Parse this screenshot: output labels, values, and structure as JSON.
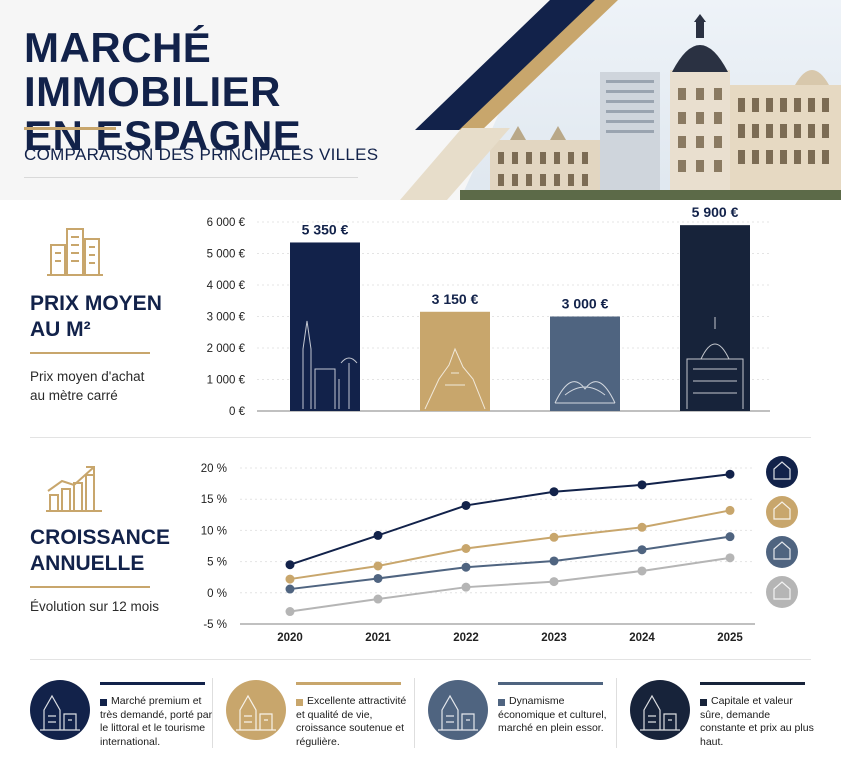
{
  "header": {
    "title_line1": "MARCHÉ IMMOBILIER",
    "title_line2": "EN ESPAGNE",
    "subtitle": "COMPARAISON DES PRINCIPALES VILLES"
  },
  "colors": {
    "navy": "#12224a",
    "gold": "#c8a66c",
    "steel": "#4f6480",
    "dark": "#17233a",
    "grey": "#b5b5b5"
  },
  "price_section": {
    "title_line1": "PRIX MOYEN",
    "title_line2": "AU M²",
    "description_line1": "Prix moyen d'achat",
    "description_line2": "au mètre carré",
    "icon": "buildings-icon"
  },
  "growth_section": {
    "title_line1": "CROISSANCE",
    "title_line2": "ANNUELLE",
    "description": "Évolution sur 12 mois",
    "icon": "growth-chart-icon"
  },
  "chart_data": [
    {
      "type": "bar",
      "categories": [
        "",
        "",
        "",
        ""
      ],
      "values": [
        5350,
        3150,
        3000,
        5900
      ],
      "data_labels": [
        "5 350 €",
        "3 150 €",
        "3 000 €",
        "5 900 €"
      ],
      "colors": [
        "#12224a",
        "#c8a66c",
        "#4f6480",
        "#17233a"
      ],
      "ylim": [
        0,
        6000
      ],
      "yticks": [
        0,
        1000,
        2000,
        3000,
        4000,
        5000,
        6000
      ],
      "ytick_labels": [
        "0 €",
        "1 000 €",
        "2 000 €",
        "3 000 €",
        "4 000 €",
        "5 000 €",
        "6 000 €"
      ],
      "grid": true
    },
    {
      "type": "line",
      "x": [
        "2020",
        "2021",
        "2022",
        "2023",
        "2024",
        "2025"
      ],
      "series": [
        {
          "values": [
            4.5,
            9.2,
            14.0,
            16.2,
            17.3,
            19.0
          ],
          "color": "#12224a"
        },
        {
          "values": [
            2.2,
            4.3,
            7.1,
            8.9,
            10.5,
            13.2
          ],
          "color": "#c8a66c"
        },
        {
          "values": [
            0.6,
            2.3,
            4.1,
            5.1,
            6.9,
            9.0
          ],
          "color": "#4f6480"
        },
        {
          "values": [
            -3.0,
            -1.0,
            0.9,
            1.8,
            3.5,
            5.6
          ],
          "color": "#b5b5b5"
        }
      ],
      "ylim": [
        -5,
        20
      ],
      "yticks": [
        -5,
        0,
        5,
        10,
        15,
        20
      ],
      "ytick_labels": [
        "-5 %",
        "0 %",
        "5 %",
        "10 %",
        "15 %",
        "20 %"
      ],
      "grid": true
    }
  ],
  "cards": [
    {
      "text": "Marché premium et très demandé, porté par le littoral et le tourisme international.",
      "color": "#12224a",
      "icon": "cathedral-icon"
    },
    {
      "text": "Excellente attractivité et qualité de vie, croissance soutenue et régulière.",
      "color": "#c8a66c",
      "icon": "mountain-monastery-icon"
    },
    {
      "text": "Dynamisme économique et culturel, marché en plein essor.",
      "color": "#4f6480",
      "icon": "modern-architecture-icon"
    },
    {
      "text": "Capitale et valeur sûre, demande constante et prix au plus haut.",
      "color": "#17233a",
      "icon": "domed-building-icon"
    }
  ]
}
